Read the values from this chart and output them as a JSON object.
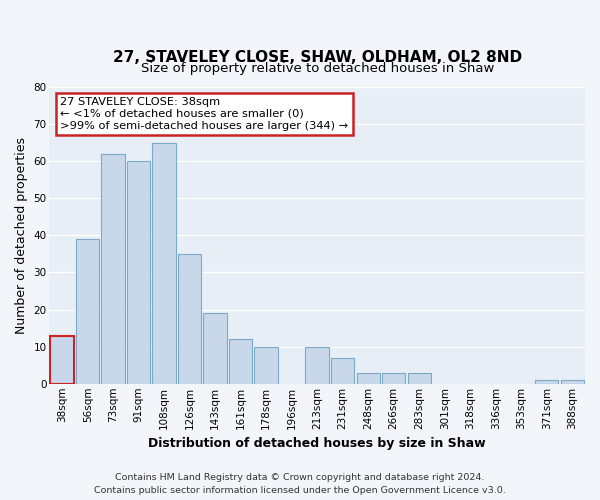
{
  "title": "27, STAVELEY CLOSE, SHAW, OLDHAM, OL2 8ND",
  "subtitle": "Size of property relative to detached houses in Shaw",
  "xlabel": "Distribution of detached houses by size in Shaw",
  "ylabel": "Number of detached properties",
  "categories": [
    "38sqm",
    "56sqm",
    "73sqm",
    "91sqm",
    "108sqm",
    "126sqm",
    "143sqm",
    "161sqm",
    "178sqm",
    "196sqm",
    "213sqm",
    "231sqm",
    "248sqm",
    "266sqm",
    "283sqm",
    "301sqm",
    "318sqm",
    "336sqm",
    "353sqm",
    "371sqm",
    "388sqm"
  ],
  "values": [
    13,
    39,
    62,
    60,
    65,
    35,
    19,
    12,
    10,
    0,
    10,
    7,
    3,
    3,
    3,
    0,
    0,
    0,
    0,
    1,
    1
  ],
  "bar_color": "#c8d8ea",
  "bar_edge_color": "#7aaac8",
  "highlight_bar_color": "#c8d8ea",
  "highlight_edge_color": "#cc2222",
  "annotation_title": "27 STAVELEY CLOSE: 38sqm",
  "annotation_line1": "← <1% of detached houses are smaller (0)",
  "annotation_line2": ">99% of semi-detached houses are larger (344) →",
  "annotation_box_facecolor": "#ffffff",
  "annotation_box_edgecolor": "#cc2222",
  "ylim": [
    0,
    80
  ],
  "yticks": [
    0,
    10,
    20,
    30,
    40,
    50,
    60,
    70,
    80
  ],
  "footer_line1": "Contains HM Land Registry data © Crown copyright and database right 2024.",
  "footer_line2": "Contains public sector information licensed under the Open Government Licence v3.0.",
  "plot_bg_color": "#e8eef5",
  "fig_bg_color": "#f2f6fa",
  "grid_color": "#ffffff",
  "title_fontsize": 11,
  "subtitle_fontsize": 9.5,
  "axis_label_fontsize": 9,
  "tick_fontsize": 7.5,
  "footer_fontsize": 6.8,
  "annotation_fontsize": 8.2
}
